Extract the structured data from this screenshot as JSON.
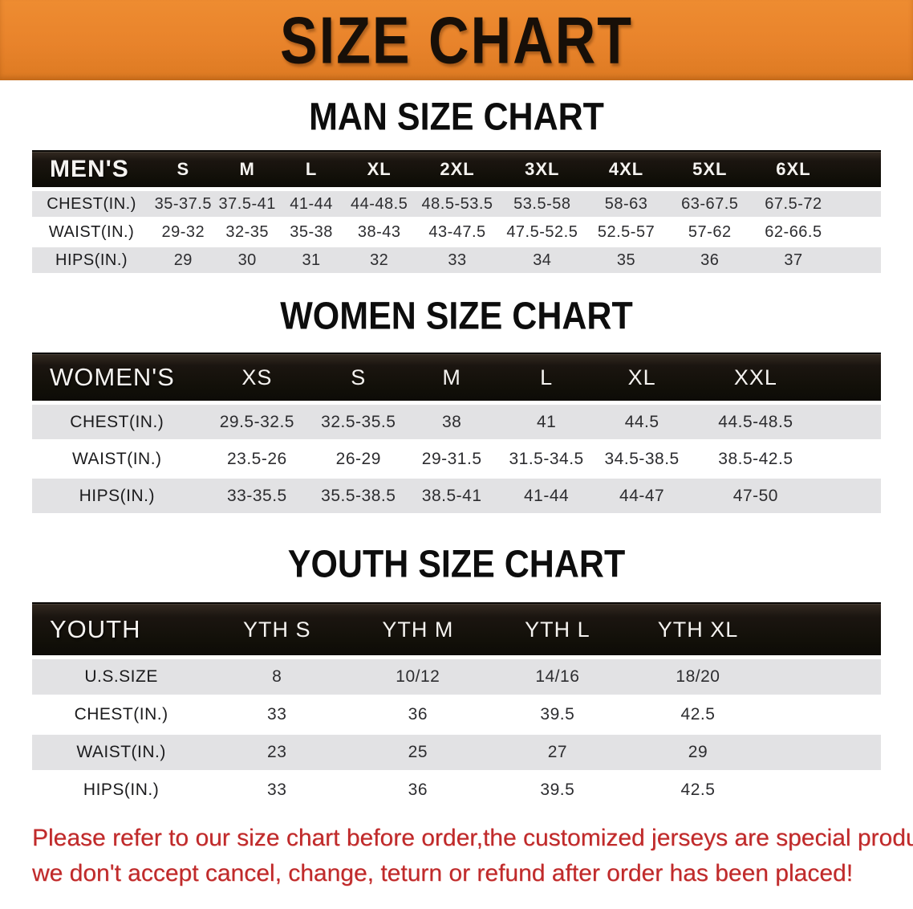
{
  "banner": {
    "title": "SIZE CHART",
    "bg_color": "#E8832B",
    "text_color": "#170F08"
  },
  "sections": [
    {
      "title": "MAN SIZE CHART",
      "table": {
        "header": [
          "MEN'S",
          "S",
          "M",
          "L",
          "XL",
          "2XL",
          "3XL",
          "4XL",
          "5XL",
          "6XL"
        ],
        "rows": [
          {
            "label": "CHEST(IN.)",
            "values": [
              "35-37.5",
              "37.5-41",
              "41-44",
              "44-48.5",
              "48.5-53.5",
              "53.5-58",
              "58-63",
              "63-67.5",
              "67.5-72"
            ]
          },
          {
            "label": "WAIST(IN.)",
            "values": [
              "29-32",
              "32-35",
              "35-38",
              "38-43",
              "43-47.5",
              "47.5-52.5",
              "52.5-57",
              "57-62",
              "62-66.5"
            ]
          },
          {
            "label": "HIPS(IN.)",
            "values": [
              "29",
              "30",
              "31",
              "32",
              "33",
              "34",
              "35",
              "36",
              "37"
            ]
          }
        ]
      }
    },
    {
      "title": "WOMEN SIZE CHART",
      "table": {
        "header": [
          "WOMEN'S",
          "XS",
          "S",
          "M",
          "L",
          "XL",
          "XXL"
        ],
        "rows": [
          {
            "label": "CHEST(IN.)",
            "values": [
              "29.5-32.5",
              "32.5-35.5",
              "38",
              "41",
              "44.5",
              "44.5-48.5"
            ]
          },
          {
            "label": "WAIST(IN.)",
            "values": [
              "23.5-26",
              "26-29",
              "29-31.5",
              "31.5-34.5",
              "34.5-38.5",
              "38.5-42.5"
            ]
          },
          {
            "label": "HIPS(IN.)",
            "values": [
              "33-35.5",
              "35.5-38.5",
              "38.5-41",
              "41-44",
              "44-47",
              "47-50"
            ]
          }
        ]
      }
    },
    {
      "title": "YOUTH SIZE CHART",
      "table": {
        "header": [
          "YOUTH",
          "YTH S",
          "YTH M",
          "YTH L",
          "YTH XL"
        ],
        "rows": [
          {
            "label": "U.S.SIZE",
            "values": [
              "8",
              "10/12",
              "14/16",
              "18/20"
            ]
          },
          {
            "label": "CHEST(IN.)",
            "values": [
              "33",
              "36",
              "39.5",
              "42.5"
            ]
          },
          {
            "label": "WAIST(IN.)",
            "values": [
              "23",
              "25",
              "27",
              "29"
            ]
          },
          {
            "label": "HIPS(IN.)",
            "values": [
              "33",
              "36",
              "39.5",
              "42.5"
            ]
          }
        ]
      }
    }
  ],
  "disclaimer": {
    "line1": "Please refer to our size chart before order,the customized jerseys are special products,",
    "line2": "we don't accept cancel, change, teturn or refund after order has been placed!",
    "color": "#BF2A2B"
  }
}
